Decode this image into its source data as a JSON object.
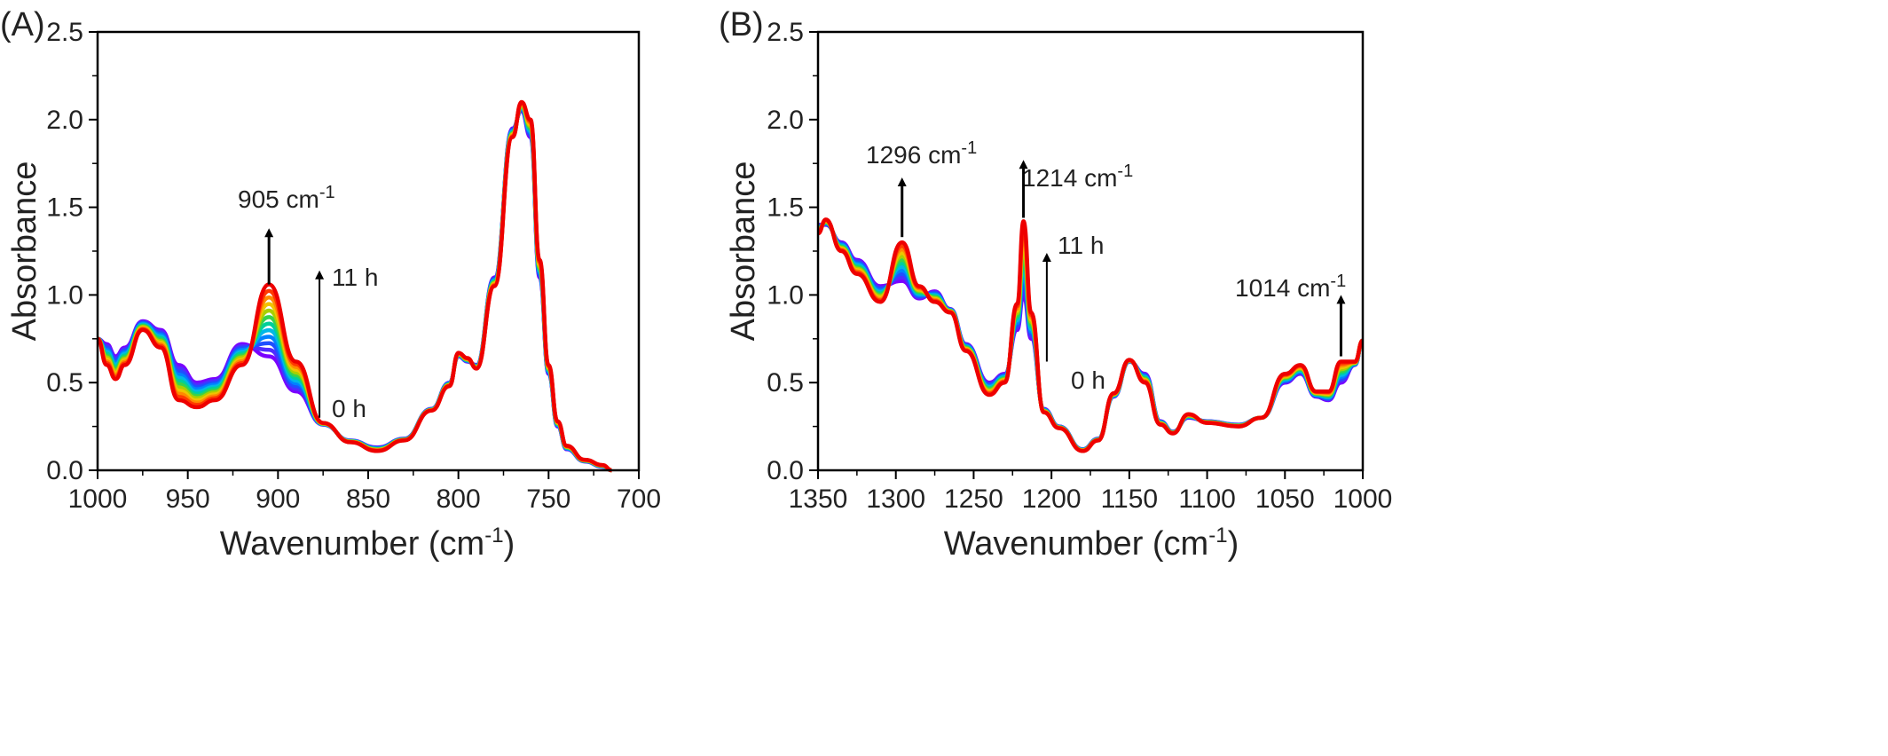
{
  "figure": {
    "panels": [
      {
        "label": "(A)",
        "xlabel": "Wavenumber (cm",
        "xlabel_sup": "-1",
        "xlabel_end": ")",
        "ylabel": "Absorbance"
      },
      {
        "label": "(B)",
        "xlabel": "Wavenumber (cm",
        "xlabel_sup": "-1",
        "xlabel_end": ")",
        "ylabel": "Absorbance"
      }
    ]
  },
  "chart_data": [
    {
      "type": "line",
      "panel": "(A)",
      "xlabel": "Wavenumber (cm-1)",
      "ylabel": "Absorbance",
      "xlim": [
        1000,
        700
      ],
      "ylim": [
        0,
        2.5
      ],
      "reversed_x": true,
      "x_ticks": [
        "1000",
        "950",
        "900",
        "850",
        "800",
        "750",
        "700"
      ],
      "x_tick_values": [
        1000,
        950,
        900,
        850,
        800,
        750,
        700
      ],
      "y_ticks": [
        "0.0",
        "0.5",
        "1.0",
        "1.5",
        "2.0",
        "2.5"
      ],
      "y_tick_values": [
        0,
        0.5,
        1.0,
        1.5,
        2.0,
        2.5
      ],
      "series_colors": [
        "#7a00ff",
        "#4f2cff",
        "#1f4fff",
        "#0082ff",
        "#00b8e6",
        "#00cf9a",
        "#39d24a",
        "#a8d000",
        "#f0c400",
        "#ff8a00",
        "#ff3a00",
        "#ee0000"
      ],
      "series_labels": {
        "first": "0 h",
        "last": "11 h"
      },
      "series_start": {
        "x": [
          1000,
          995,
          990,
          985,
          975,
          965,
          955,
          945,
          935,
          920,
          905,
          890,
          875,
          860,
          845,
          830,
          815,
          805,
          800,
          795,
          790,
          780,
          770,
          765,
          760,
          755,
          750,
          745,
          740,
          730,
          720,
          715
        ],
        "y": [
          0.75,
          0.72,
          0.65,
          0.7,
          0.85,
          0.8,
          0.6,
          0.5,
          0.52,
          0.72,
          0.65,
          0.45,
          0.26,
          0.17,
          0.13,
          0.18,
          0.35,
          0.5,
          0.65,
          0.62,
          0.6,
          1.1,
          1.95,
          2.05,
          1.9,
          1.1,
          0.55,
          0.25,
          0.12,
          0.05,
          0.02,
          0.0
        ]
      },
      "series_end": {
        "x": [
          1000,
          995,
          990,
          985,
          975,
          965,
          955,
          945,
          935,
          920,
          905,
          890,
          875,
          860,
          845,
          830,
          815,
          805,
          800,
          795,
          790,
          780,
          770,
          765,
          760,
          755,
          750,
          745,
          740,
          730,
          720,
          715
        ],
        "y": [
          0.75,
          0.6,
          0.52,
          0.6,
          0.8,
          0.7,
          0.4,
          0.36,
          0.4,
          0.6,
          1.06,
          0.62,
          0.27,
          0.16,
          0.11,
          0.17,
          0.34,
          0.48,
          0.67,
          0.64,
          0.58,
          1.05,
          1.9,
          2.1,
          2.0,
          1.2,
          0.6,
          0.28,
          0.14,
          0.06,
          0.03,
          0.0
        ]
      },
      "annotations": [
        {
          "text": "905 cm",
          "sup": "-1",
          "x": 905,
          "arrow_from": 1.06,
          "arrow_to": 1.38
        },
        {
          "text": "11 h",
          "arrow_x": 877,
          "arrow_from": 0.3,
          "arrow_to": 1.14
        },
        {
          "text": "0 h"
        }
      ]
    },
    {
      "type": "line",
      "panel": "(B)",
      "xlabel": "Wavenumber (cm-1)",
      "ylabel": "Absorbance",
      "xlim": [
        1350,
        1000
      ],
      "ylim": [
        0,
        2.5
      ],
      "reversed_x": true,
      "x_ticks": [
        "1350",
        "1300",
        "1250",
        "1200",
        "1150",
        "1100",
        "1050",
        "1000"
      ],
      "x_tick_values": [
        1350,
        1300,
        1250,
        1200,
        1150,
        1100,
        1050,
        1000
      ],
      "y_ticks": [
        "0.0",
        "0.5",
        "1.0",
        "1.5",
        "2.0",
        "2.5"
      ],
      "y_tick_values": [
        0,
        0.5,
        1.0,
        1.5,
        2.0,
        2.5
      ],
      "series_colors": [
        "#7a00ff",
        "#4f2cff",
        "#1f4fff",
        "#0082ff",
        "#00b8e6",
        "#00cf9a",
        "#39d24a",
        "#a8d000",
        "#f0c400",
        "#ff8a00",
        "#ff3a00",
        "#ee0000"
      ],
      "series_labels": {
        "first": "0 h",
        "last": "11 h"
      },
      "series_start": {
        "x": [
          1350,
          1345,
          1335,
          1325,
          1310,
          1296,
          1285,
          1275,
          1265,
          1255,
          1240,
          1230,
          1222,
          1218,
          1213,
          1205,
          1195,
          1180,
          1170,
          1160,
          1150,
          1140,
          1130,
          1122,
          1112,
          1100,
          1080,
          1065,
          1050,
          1040,
          1030,
          1022,
          1014,
          1005,
          1000
        ],
        "y": [
          1.4,
          1.4,
          1.3,
          1.2,
          1.05,
          1.08,
          0.98,
          1.02,
          0.92,
          0.72,
          0.5,
          0.55,
          0.8,
          1.0,
          0.75,
          0.35,
          0.25,
          0.12,
          0.18,
          0.42,
          0.62,
          0.55,
          0.28,
          0.22,
          0.3,
          0.28,
          0.26,
          0.3,
          0.5,
          0.55,
          0.42,
          0.4,
          0.5,
          0.6,
          0.74
        ]
      },
      "series_end": {
        "x": [
          1350,
          1345,
          1335,
          1325,
          1310,
          1296,
          1285,
          1275,
          1265,
          1255,
          1240,
          1230,
          1222,
          1218,
          1213,
          1205,
          1195,
          1180,
          1170,
          1160,
          1150,
          1140,
          1130,
          1122,
          1112,
          1100,
          1080,
          1065,
          1050,
          1040,
          1030,
          1022,
          1014,
          1005,
          1000
        ],
        "y": [
          1.35,
          1.43,
          1.25,
          1.12,
          0.96,
          1.3,
          1.05,
          0.96,
          0.9,
          0.68,
          0.43,
          0.5,
          0.95,
          1.42,
          0.9,
          0.33,
          0.24,
          0.11,
          0.17,
          0.44,
          0.63,
          0.5,
          0.26,
          0.21,
          0.32,
          0.27,
          0.25,
          0.3,
          0.55,
          0.6,
          0.45,
          0.45,
          0.62,
          0.62,
          0.74
        ]
      },
      "annotations": [
        {
          "text": "1296 cm",
          "sup": "-1",
          "x": 1296,
          "arrow_from": 1.33,
          "arrow_to": 1.67
        },
        {
          "text": "1214 cm",
          "sup": "-1",
          "x": 1218,
          "arrow_from": 1.44,
          "arrow_to": 1.77
        },
        {
          "text": "11 h",
          "arrow_x": 1203,
          "arrow_from": 0.62,
          "arrow_to": 1.24
        },
        {
          "text": "0 h"
        },
        {
          "text": "1014 cm",
          "sup": "-1",
          "x": 1014,
          "arrow_from": 0.65,
          "arrow_to": 1.0
        }
      ]
    }
  ]
}
